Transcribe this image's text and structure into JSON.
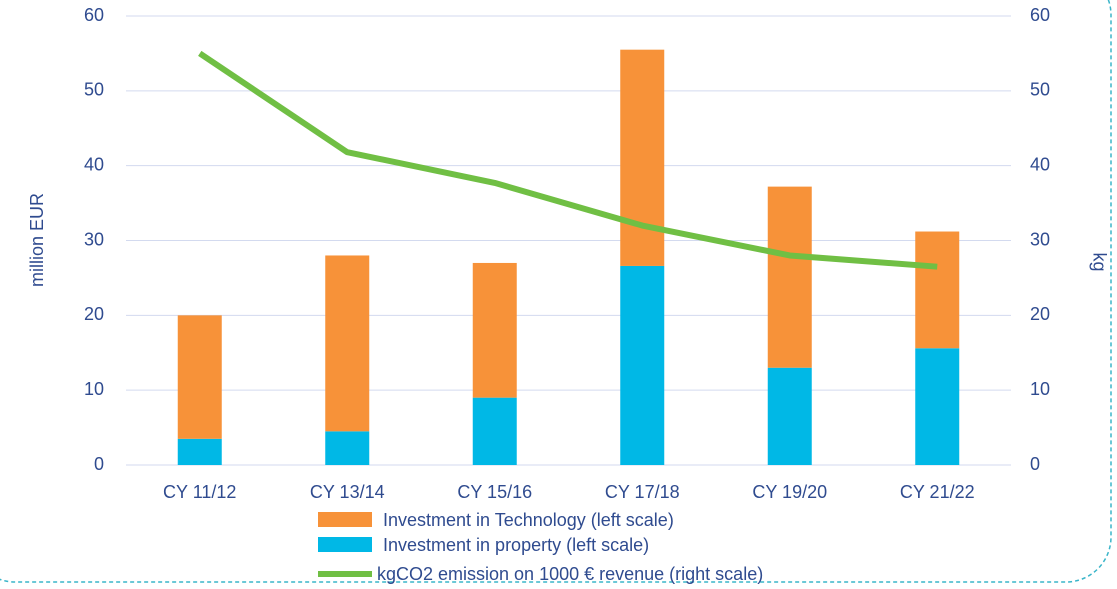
{
  "chart_data": {
    "type": "bar",
    "categories": [
      "CY 11/12",
      "CY 13/14",
      "CY 15/16",
      "CY 17/18",
      "CY 19/20",
      "CY 21/22"
    ],
    "series": [
      {
        "name": "Investment in Technology (left scale)",
        "color": "#f79239",
        "type": "bar",
        "axis": "y",
        "values": [
          16.5,
          23.5,
          18,
          28.9,
          24.2,
          15.6
        ]
      },
      {
        "name": "Investment in property (left scale)",
        "color": "#00b8e6",
        "type": "bar",
        "axis": "y",
        "values": [
          3.5,
          4.5,
          9,
          26.6,
          13,
          15.6
        ]
      },
      {
        "name": "kgCO2 emission on 1000 € revenue (right scale)",
        "color": "#70bf44",
        "type": "line",
        "axis": "y2",
        "values": [
          55,
          41.8,
          37.7,
          32,
          28,
          26.5
        ]
      }
    ],
    "stacked": true,
    "ylabel": "million EUR",
    "y2label": "kg",
    "ylim": [
      0,
      60
    ],
    "yticks": [
      0,
      10,
      20,
      30,
      40,
      50,
      60
    ],
    "y2lim": [
      0,
      60
    ],
    "y2ticks": [
      0,
      10,
      20,
      30,
      40,
      50,
      60
    ],
    "grid": true,
    "legend": "bottom"
  }
}
